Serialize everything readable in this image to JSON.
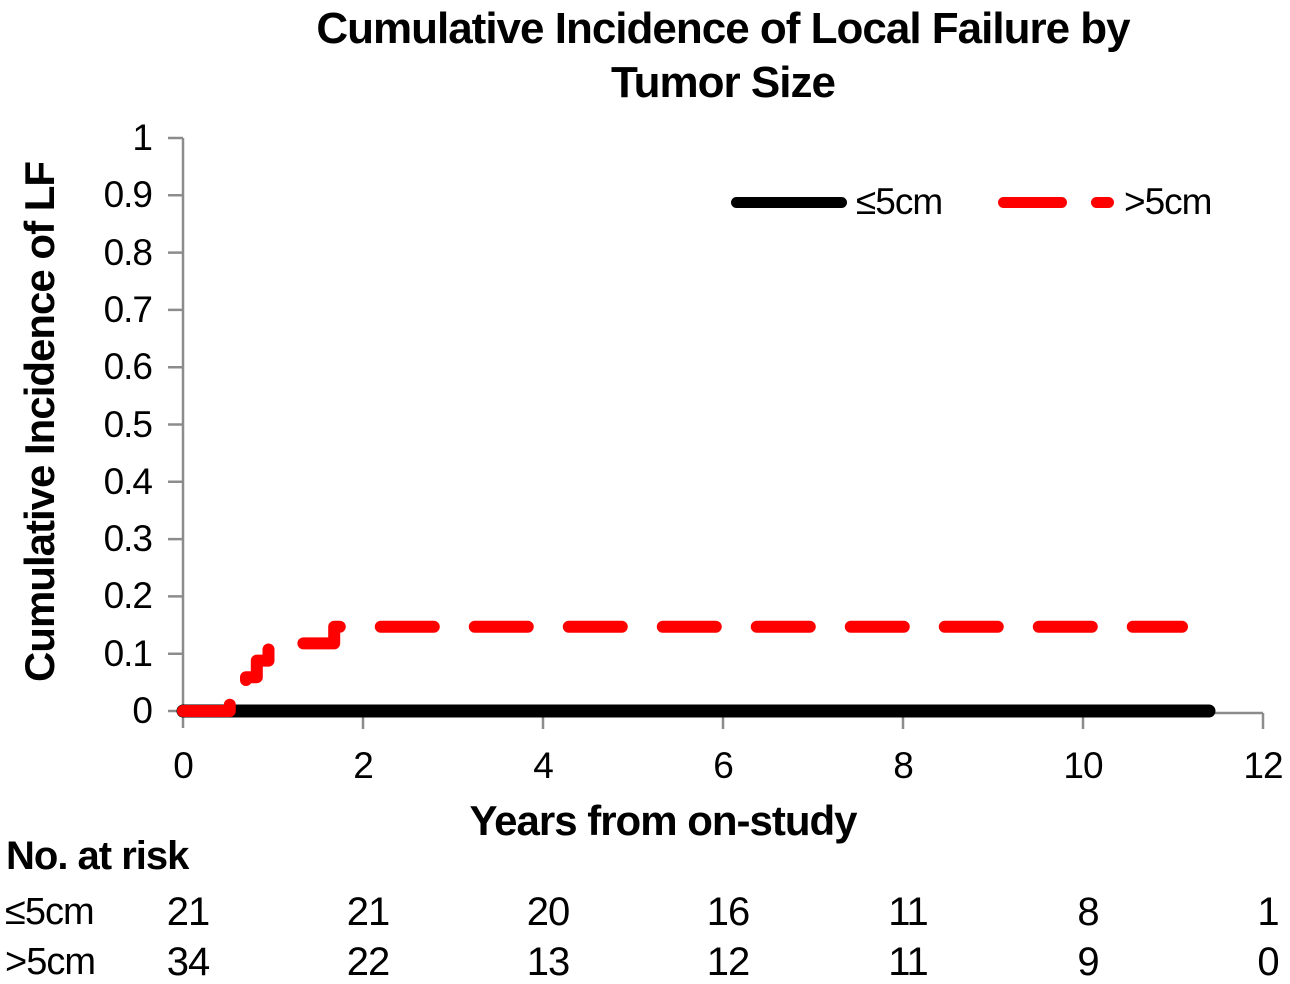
{
  "figure": {
    "title_line1": "Cumulative Incidence of Local Failure by",
    "title_line2": "Tumor Size"
  },
  "chart_data": {
    "type": "line",
    "subtype": "step",
    "title": "Cumulative Incidence of Local Failure by Tumor Size",
    "xlabel": "Years from on-study",
    "ylabel": "Cumulative Incidence of LF",
    "xlim": [
      0,
      12
    ],
    "ylim": [
      0,
      1
    ],
    "xticks": [
      0,
      2,
      4,
      6,
      8,
      10,
      12
    ],
    "yticks": [
      0,
      0.1,
      0.2,
      0.3,
      0.4,
      0.5,
      0.6,
      0.7,
      0.8,
      0.9,
      1
    ],
    "grid": false,
    "legend_position": "top-right-inside",
    "axis_color": "#8C8C8C",
    "series": [
      {
        "name": "≤5cm",
        "color": "#000000",
        "line_style": "solid",
        "points": [
          [
            0,
            0
          ],
          [
            11.4,
            0
          ]
        ]
      },
      {
        "name": ">5cm",
        "color": "#FF0000",
        "line_style": "dashed",
        "points": [
          [
            0,
            0
          ],
          [
            0.52,
            0
          ],
          [
            0.52,
            0.029
          ],
          [
            0.7,
            0.029
          ],
          [
            0.7,
            0.059
          ],
          [
            0.82,
            0.059
          ],
          [
            0.82,
            0.088
          ],
          [
            0.95,
            0.088
          ],
          [
            0.95,
            0.118
          ],
          [
            1.68,
            0.118
          ],
          [
            1.68,
            0.147
          ],
          [
            11.1,
            0.147
          ]
        ]
      }
    ],
    "risk_table": {
      "header": "No. at risk",
      "time_points": [
        0,
        2,
        4,
        6,
        8,
        10,
        12
      ],
      "rows": [
        {
          "label": "≤5cm",
          "values": [
            21,
            21,
            20,
            16,
            11,
            8,
            1
          ]
        },
        {
          "label": ">5cm",
          "values": [
            34,
            22,
            13,
            12,
            11,
            9,
            0
          ]
        }
      ]
    }
  }
}
